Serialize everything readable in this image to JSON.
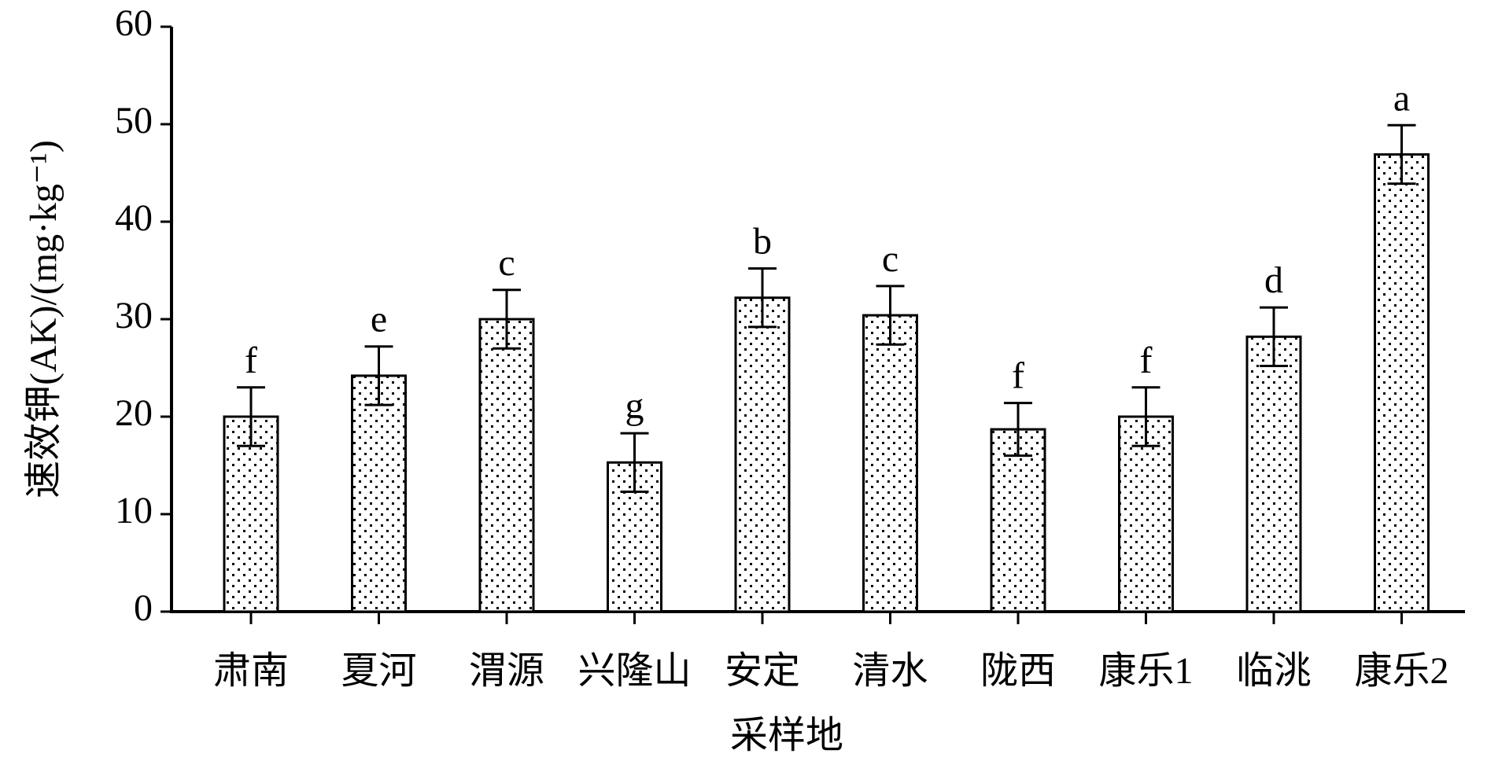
{
  "chart_data": {
    "type": "bar",
    "y_label": "速效钾(AK)/(mg·kg⁻¹)",
    "x_label": "采样地",
    "categories": [
      "肃南",
      "夏河",
      "渭源",
      "兴隆山",
      "安定",
      "清水",
      "陇西",
      "康乐1",
      "临洮",
      "康乐2"
    ],
    "values": [
      20,
      24.2,
      30,
      15.3,
      32.2,
      30.4,
      18.7,
      20,
      28.2,
      46.9
    ],
    "errors": [
      3,
      3,
      3,
      3,
      3,
      3,
      2.7,
      3,
      3,
      3
    ],
    "letters": [
      "f",
      "e",
      "c",
      "g",
      "b",
      "c",
      "f",
      "f",
      "d",
      "a"
    ],
    "color": "#000000",
    "ylim": [
      0,
      60
    ],
    "yticks": [
      0,
      10,
      20,
      30,
      40,
      50,
      60
    ],
    "grid": false
  }
}
